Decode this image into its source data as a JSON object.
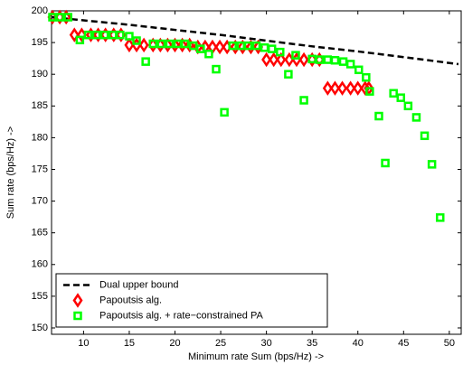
{
  "chart_data": {
    "type": "scatter",
    "xlabel": "Minimum rate  Sum (bps/Hz) ->",
    "ylabel": "Sum rate (bps/Hz) ->",
    "xlim": [
      6.5,
      51.3
    ],
    "ylim": [
      149,
      200
    ],
    "xticks": [
      10,
      15,
      20,
      25,
      30,
      35,
      40,
      45,
      50
    ],
    "yticks": [
      150,
      155,
      160,
      165,
      170,
      175,
      180,
      185,
      190,
      195,
      200
    ],
    "legend": "lower left",
    "series": [
      {
        "name": "Dual upper bound",
        "color": "#000000",
        "marker": "dashed-line",
        "x": [
          6.5,
          10,
          15,
          20,
          25,
          30,
          35,
          40,
          45,
          51
        ],
        "values": [
          199,
          198.5,
          197.8,
          197,
          196.2,
          195.3,
          194.4,
          193.6,
          192.7,
          191.6
        ]
      },
      {
        "name": "Papoutsis alg.",
        "color": "#ff0000",
        "marker": "diamond",
        "x": [
          6.6,
          7.4,
          8.1,
          9,
          9.8,
          10.8,
          11.6,
          12.4,
          13.3,
          14.1,
          15,
          15.8,
          16.6,
          17.6,
          18.4,
          19.2,
          20,
          20.8,
          21.6,
          22.5,
          23.3,
          24.1,
          24.9,
          25.7,
          26.6,
          27.4,
          28.3,
          29.1,
          30,
          30.8,
          31.6,
          32.5,
          33.3,
          34.1,
          35,
          35.8,
          36.7,
          37.5,
          38.3,
          39.2,
          40,
          40.8,
          41.2
        ],
        "values": [
          199,
          199,
          199,
          196.2,
          196.2,
          196.2,
          196.2,
          196.2,
          196.2,
          196.2,
          194.6,
          194.6,
          194.6,
          194.6,
          194.6,
          194.6,
          194.6,
          194.6,
          194.6,
          194.3,
          194.3,
          194.3,
          194.3,
          194.3,
          194.3,
          194.3,
          194.3,
          194.3,
          192.3,
          192.3,
          192.3,
          192.3,
          192.3,
          192.3,
          192.3,
          192.3,
          187.8,
          187.8,
          187.8,
          187.8,
          187.8,
          187.8,
          187.8
        ]
      },
      {
        "name": "Papoutsis alg. + rate−constrained PA",
        "color": "#00ff00",
        "marker": "square",
        "x": [
          6.6,
          7.4,
          8.3,
          9.6,
          10.5,
          11.4,
          12.3,
          13.2,
          14,
          15,
          15.8,
          16.8,
          17.6,
          18.5,
          19.4,
          20.3,
          21.1,
          22,
          22.8,
          23.7,
          24.5,
          25.4,
          26.3,
          27.2,
          28,
          28.9,
          29.8,
          30.6,
          31.5,
          32.4,
          33.2,
          34.1,
          35,
          35.8,
          36.7,
          37.5,
          38.4,
          39.2,
          40.1,
          40.9,
          41.3,
          42.3,
          43,
          43.9,
          44.7,
          45.5,
          46.4,
          47.3,
          48.1,
          49
        ],
        "values": [
          199,
          199,
          199,
          195.4,
          196.2,
          196.2,
          196.2,
          196.2,
          196.2,
          196,
          195.3,
          192,
          194.8,
          194.8,
          194.8,
          194.8,
          194.8,
          194.5,
          194,
          193.2,
          190.8,
          184,
          194.5,
          194.5,
          194.5,
          194.5,
          194.2,
          194,
          193.5,
          190,
          193,
          185.9,
          192.4,
          192.3,
          192.3,
          192.2,
          192,
          191.6,
          190.7,
          189.5,
          187.3,
          183.4,
          176,
          187,
          186.3,
          185,
          183.2,
          180.3,
          175.8,
          167.4
        ]
      }
    ]
  }
}
